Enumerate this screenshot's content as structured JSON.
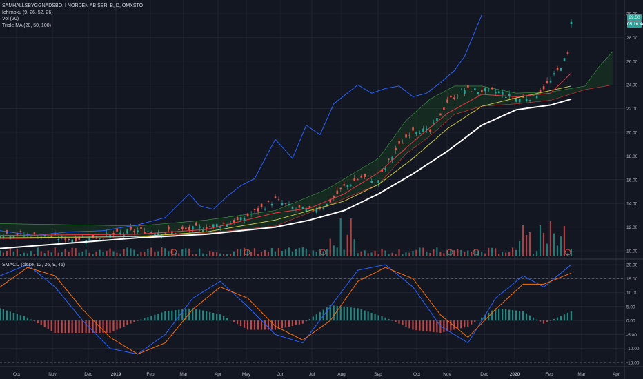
{
  "header": {
    "symbol_title": "SAMHALLSBYGGNADSBO. I NORDEN AB SER. B, D, OMXSTO",
    "indicators": [
      "Ichimoku (9, 26, 52, 26)",
      "Vol (20)",
      "Triple MA (20, 50, 100)"
    ]
  },
  "macd_pane": {
    "title": "SMACD (close, 12, 26, 9, 45)"
  },
  "price_tags": {
    "last_price": "29.50",
    "countdown": "05:16:44"
  },
  "colors": {
    "background": "#131722",
    "grid": "#2a2e39",
    "up": "#26a69a",
    "down": "#ef5350",
    "ma_fast": "#f23645",
    "ma_mid": "#c8c83a",
    "ma_slow": "#ffffff",
    "chikou": "#2962ff",
    "tenkan": "#2196f3",
    "kijun": "#b71c1c",
    "cloud": "#1e3a2a",
    "macd": "#2962ff",
    "signal": "#ff6d00"
  },
  "chart_data": [
    {
      "type": "candlestick",
      "title": "SAMHALLSBYGGNADSBO. I NORDEN AB SER. B, D, OMXSTO",
      "x_tick_labels": [
        "Oct",
        "Nov",
        "Dec",
        "2019",
        "Feb",
        "Mar",
        "Apr",
        "May",
        "Jun",
        "Jul",
        "Aug",
        "Sep",
        "Oct",
        "Nov",
        "Dec",
        "2020",
        "Feb",
        "Mar",
        "Apr"
      ],
      "y_tick_labels": [
        "30.00",
        "28.00",
        "26.00",
        "24.00",
        "22.00",
        "20.00",
        "18.00",
        "16.00",
        "14.00",
        "12.00",
        "10.00"
      ],
      "ylim": [
        10,
        30
      ],
      "close_path": [
        [
          0,
          11.5
        ],
        [
          10,
          11.3
        ],
        [
          20,
          11.0
        ],
        [
          30,
          11.2
        ],
        [
          40,
          11.7
        ],
        [
          50,
          11.6
        ],
        [
          60,
          12.0
        ],
        [
          70,
          12.6
        ],
        [
          80,
          14.3
        ],
        [
          85,
          13.6
        ],
        [
          90,
          13.4
        ],
        [
          95,
          13.9
        ],
        [
          100,
          15.4
        ],
        [
          105,
          16.2
        ],
        [
          110,
          16.0
        ],
        [
          115,
          18.5
        ],
        [
          120,
          20.3
        ],
        [
          125,
          20.0
        ],
        [
          130,
          22.6
        ],
        [
          135,
          23.6
        ],
        [
          140,
          23.5
        ],
        [
          145,
          23.4
        ],
        [
          150,
          22.8
        ],
        [
          155,
          23.0
        ],
        [
          160,
          24.3
        ],
        [
          162,
          25.2
        ],
        [
          165,
          26.5
        ],
        [
          166,
          29.5
        ]
      ],
      "ma_20_path": [
        [
          0,
          11.3
        ],
        [
          40,
          11.4
        ],
        [
          60,
          11.8
        ],
        [
          80,
          13.2
        ],
        [
          90,
          13.6
        ],
        [
          100,
          14.8
        ],
        [
          110,
          16.6
        ],
        [
          120,
          19.2
        ],
        [
          130,
          21.6
        ],
        [
          140,
          23.2
        ],
        [
          150,
          23.0
        ],
        [
          160,
          23.3
        ],
        [
          166,
          25.0
        ]
      ],
      "ma_50_path": [
        [
          0,
          11.1
        ],
        [
          40,
          11.2
        ],
        [
          60,
          11.6
        ],
        [
          80,
          12.6
        ],
        [
          100,
          14.2
        ],
        [
          110,
          15.6
        ],
        [
          120,
          17.8
        ],
        [
          130,
          20.3
        ],
        [
          140,
          22.2
        ],
        [
          150,
          22.9
        ],
        [
          166,
          23.9
        ]
      ],
      "ma_100_path": [
        [
          0,
          10.2
        ],
        [
          40,
          11.1
        ],
        [
          60,
          11.4
        ],
        [
          80,
          12.0
        ],
        [
          90,
          12.6
        ],
        [
          100,
          13.4
        ],
        [
          110,
          14.8
        ],
        [
          120,
          16.5
        ],
        [
          130,
          18.4
        ],
        [
          140,
          20.6
        ],
        [
          150,
          21.9
        ],
        [
          160,
          22.3
        ],
        [
          166,
          22.8
        ]
      ],
      "chikou_path": [
        [
          0,
          11.7
        ],
        [
          10,
          11.3
        ],
        [
          20,
          11.6
        ],
        [
          30,
          11.7
        ],
        [
          40,
          12.2
        ],
        [
          48,
          12.8
        ],
        [
          55,
          14.8
        ],
        [
          58,
          13.8
        ],
        [
          62,
          13.5
        ],
        [
          66,
          14.6
        ],
        [
          70,
          15.5
        ],
        [
          74,
          16.1
        ],
        [
          80,
          19.4
        ],
        [
          85,
          17.8
        ],
        [
          89,
          20.6
        ],
        [
          93,
          19.8
        ],
        [
          97,
          22.4
        ],
        [
          100,
          23.1
        ],
        [
          104,
          24.0
        ],
        [
          108,
          23.3
        ],
        [
          112,
          23.7
        ],
        [
          116,
          23.9
        ],
        [
          120,
          23.0
        ],
        [
          124,
          23.3
        ],
        [
          128,
          24.2
        ],
        [
          132,
          25.2
        ],
        [
          135,
          26.4
        ],
        [
          138,
          28.5
        ],
        [
          140,
          29.9
        ]
      ],
      "cloud_upper_path": [
        [
          0,
          12.3
        ],
        [
          40,
          12.1
        ],
        [
          60,
          12.6
        ],
        [
          80,
          13.4
        ],
        [
          95,
          15.2
        ],
        [
          110,
          17.8
        ],
        [
          118,
          21.0
        ],
        [
          125,
          22.8
        ],
        [
          132,
          23.9
        ],
        [
          140,
          23.9
        ],
        [
          150,
          23.3
        ],
        [
          160,
          23.4
        ],
        [
          170,
          23.9
        ],
        [
          174,
          25.5
        ],
        [
          178,
          26.8
        ]
      ],
      "cloud_lower_path": [
        [
          0,
          11.0
        ],
        [
          40,
          11.2
        ],
        [
          60,
          11.5
        ],
        [
          80,
          12.1
        ],
        [
          95,
          13.8
        ],
        [
          110,
          15.6
        ],
        [
          118,
          18.2
        ],
        [
          125,
          19.7
        ],
        [
          132,
          21.5
        ],
        [
          140,
          22.2
        ],
        [
          150,
          22.4
        ],
        [
          160,
          22.7
        ],
        [
          170,
          23.6
        ],
        [
          178,
          24.0
        ]
      ],
      "volume_profile_note": "daily volume bars, peak near Jun and Feb"
    },
    {
      "type": "histogram",
      "title": "SMACD (close, 12, 26, 9, 45)",
      "y_tick_labels": [
        "20.00",
        "15.00",
        "10.00",
        "5.00",
        "0.00",
        "-5.00",
        "-10.00",
        "-15.00"
      ],
      "ylim": [
        -15,
        20
      ],
      "series": [
        {
          "name": "MACD",
          "values": [
            [
              0,
              16
            ],
            [
              8,
              20
            ],
            [
              16,
              12
            ],
            [
              24,
              0
            ],
            [
              32,
              -10
            ],
            [
              40,
              -12
            ],
            [
              48,
              -5
            ],
            [
              56,
              8
            ],
            [
              64,
              14
            ],
            [
              72,
              5
            ],
            [
              80,
              -5
            ],
            [
              88,
              -8
            ],
            [
              96,
              5
            ],
            [
              104,
              18
            ],
            [
              112,
              20
            ],
            [
              120,
              12
            ],
            [
              128,
              -2
            ],
            [
              136,
              -8
            ],
            [
              144,
              8
            ],
            [
              152,
              16
            ],
            [
              158,
              12
            ],
            [
              166,
              20
            ]
          ]
        },
        {
          "name": "Signal",
          "values": [
            [
              0,
              12
            ],
            [
              8,
              19
            ],
            [
              16,
              16
            ],
            [
              24,
              4
            ],
            [
              32,
              -6
            ],
            [
              40,
              -12
            ],
            [
              48,
              -8
            ],
            [
              56,
              4
            ],
            [
              64,
              12
            ],
            [
              72,
              8
            ],
            [
              80,
              -2
            ],
            [
              88,
              -7
            ],
            [
              96,
              0
            ],
            [
              104,
              14
            ],
            [
              112,
              19
            ],
            [
              120,
              15
            ],
            [
              128,
              2
            ],
            [
              136,
              -6
            ],
            [
              144,
              4
            ],
            [
              152,
              13
            ],
            [
              158,
              13
            ],
            [
              166,
              17
            ]
          ]
        }
      ]
    }
  ]
}
